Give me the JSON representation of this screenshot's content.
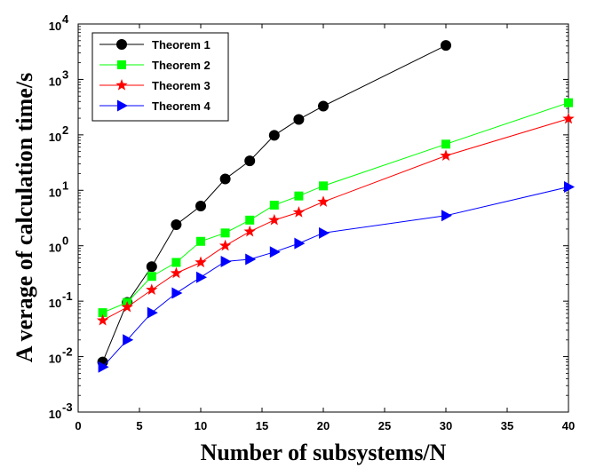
{
  "chart_data": {
    "type": "line",
    "xlabel": "Number of subsystems/N",
    "ylabel": "A verage of calculation time/s",
    "xlim": [
      0,
      40
    ],
    "ylim": [
      0.001,
      10000
    ],
    "yscale": "log",
    "grid": false,
    "legend_position": "top-left",
    "x_ticks": [
      0,
      5,
      10,
      15,
      20,
      25,
      30,
      35,
      40
    ],
    "y_ticks": [
      {
        "base": "10",
        "exp": "-3"
      },
      {
        "base": "10",
        "exp": "-2"
      },
      {
        "base": "10",
        "exp": "-1"
      },
      {
        "base": "10",
        "exp": "0"
      },
      {
        "base": "10",
        "exp": "1"
      },
      {
        "base": "10",
        "exp": "2"
      },
      {
        "base": "10",
        "exp": "3"
      },
      {
        "base": "10",
        "exp": "4"
      }
    ],
    "series": [
      {
        "name": "Theorem 1",
        "color": "#000000",
        "marker": "circle",
        "x": [
          2,
          4,
          6,
          8,
          10,
          12,
          14,
          16,
          18,
          20,
          30
        ],
        "y": [
          0.008,
          0.095,
          0.42,
          2.4,
          5.2,
          16,
          34,
          98,
          190,
          330,
          4100
        ]
      },
      {
        "name": "Theorem 2",
        "color": "#00ff00",
        "marker": "square",
        "x": [
          2,
          4,
          6,
          8,
          10,
          12,
          14,
          16,
          18,
          20,
          30,
          40
        ],
        "y": [
          0.062,
          0.095,
          0.28,
          0.5,
          1.2,
          1.7,
          2.9,
          5.4,
          7.9,
          12,
          68,
          380
        ]
      },
      {
        "name": "Theorem 3",
        "color": "#ff0000",
        "marker": "star",
        "x": [
          2,
          4,
          6,
          8,
          10,
          12,
          14,
          16,
          18,
          20,
          30,
          40
        ],
        "y": [
          0.045,
          0.078,
          0.16,
          0.32,
          0.5,
          1.0,
          1.8,
          2.9,
          4.0,
          6.2,
          42,
          195
        ]
      },
      {
        "name": "Theorem 4",
        "color": "#0000ff",
        "marker": "triangle-right",
        "x": [
          2,
          4,
          6,
          8,
          10,
          12,
          14,
          16,
          18,
          20,
          30,
          40
        ],
        "y": [
          0.0065,
          0.02,
          0.062,
          0.14,
          0.27,
          0.52,
          0.57,
          0.77,
          1.1,
          1.7,
          3.5,
          11.5
        ]
      }
    ]
  }
}
